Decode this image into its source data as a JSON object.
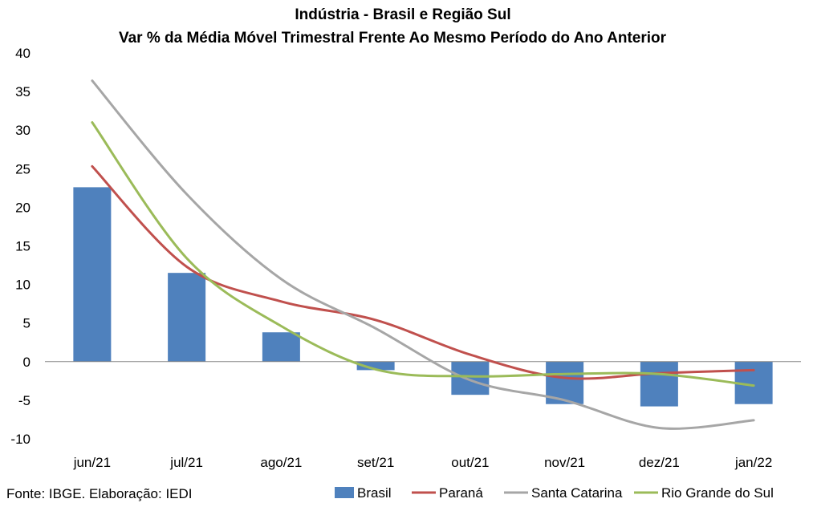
{
  "chart_data": {
    "type": "bar+line",
    "title": "Indústria - Brasil e Região Sul",
    "subtitle": "Var % da Média Móvel Trimestral Frente Ao Mesmo Período do Ano Anterior",
    "categories": [
      "jun/21",
      "jul/21",
      "ago/21",
      "set/21",
      "out/21",
      "nov/21",
      "dez/21",
      "jan/22"
    ],
    "ylim": [
      -10,
      40
    ],
    "yticks": [
      40,
      35,
      30,
      25,
      20,
      15,
      10,
      5,
      0,
      -5,
      -10
    ],
    "grid": false,
    "legend_position": "bottom",
    "series": [
      {
        "name": "Brasil",
        "kind": "bar",
        "color": "#4f81bd",
        "values": [
          22.6,
          11.5,
          3.8,
          -1.1,
          -4.3,
          -5.5,
          -5.8,
          -5.5
        ]
      },
      {
        "name": "Paraná",
        "kind": "line",
        "color": "#c0504d",
        "values": [
          25.3,
          12.3,
          7.8,
          5.4,
          0.9,
          -2.1,
          -1.5,
          -1.1
        ]
      },
      {
        "name": "Santa Catarina",
        "kind": "line",
        "color": "#a6a6a6",
        "values": [
          36.4,
          21.7,
          10.7,
          4.3,
          -2.4,
          -5.0,
          -8.6,
          -7.6
        ]
      },
      {
        "name": "Rio Grande do Sul",
        "kind": "line",
        "color": "#9bbb59",
        "values": [
          31.0,
          13.4,
          4.6,
          -1.0,
          -1.9,
          -1.6,
          -1.6,
          -3.1
        ]
      }
    ]
  },
  "footer": {
    "source": "Fonte: IBGE. Elaboração: IEDI"
  }
}
